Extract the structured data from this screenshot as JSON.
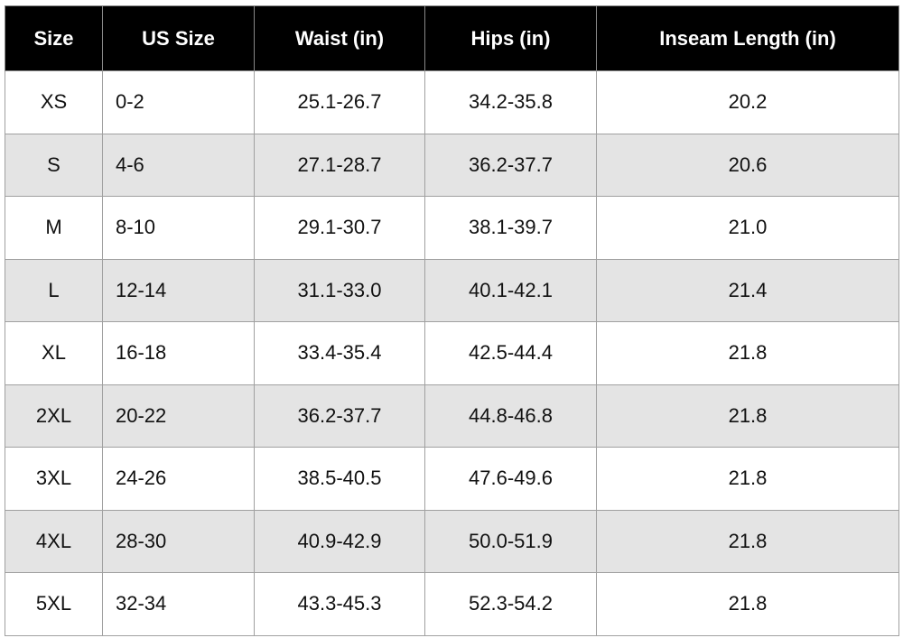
{
  "headers": [
    "Size",
    "US Size",
    "Waist (in)",
    "Hips (in)",
    "Inseam Length (in)"
  ],
  "rows": [
    [
      "XS",
      "0-2",
      "25.1-26.7",
      "34.2-35.8",
      "20.2"
    ],
    [
      "S",
      "4-6",
      "27.1-28.7",
      "36.2-37.7",
      "20.6"
    ],
    [
      "M",
      "8-10",
      "29.1-30.7",
      "38.1-39.7",
      "21.0"
    ],
    [
      "L",
      "12-14",
      "31.1-33.0",
      "40.1-42.1",
      "21.4"
    ],
    [
      "XL",
      "16-18",
      "33.4-35.4",
      "42.5-44.4",
      "21.8"
    ],
    [
      "2XL",
      "20-22",
      "36.2-37.7",
      "44.8-46.8",
      "21.8"
    ],
    [
      "3XL",
      "24-26",
      "38.5-40.5",
      "47.6-49.6",
      "21.8"
    ],
    [
      "4XL",
      "28-30",
      "40.9-42.9",
      "50.0-51.9",
      "21.8"
    ],
    [
      "5XL",
      "32-34",
      "43.3-45.3",
      "52.3-54.2",
      "21.8"
    ]
  ],
  "colors": {
    "header_bg": "#000000",
    "header_text": "#ffffff",
    "alt_row_bg": "#e4e4e4"
  }
}
